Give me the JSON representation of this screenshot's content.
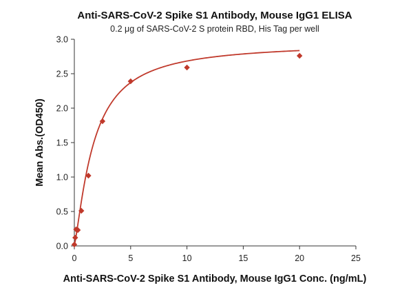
{
  "chart_data": {
    "type": "scatter",
    "title": "Anti-SARS-CoV-2 Spike S1 Antibody, Mouse IgG1 ELISA",
    "subtitle": "0.2 μg of SARS-CoV-2 S protein RBD, His Tag per well",
    "xlabel": "Anti-SARS-CoV-2 Spike S1 Antibody, Mouse IgG1 Conc. (ng/mL)",
    "ylabel": "Mean Abs.(OD450)",
    "xlim": [
      0,
      25
    ],
    "ylim": [
      0,
      3.0
    ],
    "x_ticks": [
      "0",
      "5",
      "10",
      "15",
      "20",
      "25"
    ],
    "y_ticks": [
      "0.0",
      "0.5",
      "1.0",
      "1.5",
      "2.0",
      "2.5",
      "3.0"
    ],
    "grid": false,
    "colors": {
      "series": "#c0392b",
      "axis": "#333333"
    },
    "series": [
      {
        "marker": "diamond",
        "x": [
          0.0,
          0.078,
          0.156,
          0.313,
          0.625,
          1.25,
          2.5,
          5,
          10,
          20
        ],
        "y": [
          0.02,
          0.12,
          0.24,
          0.23,
          0.51,
          1.02,
          1.81,
          2.39,
          2.59,
          2.76
        ]
      }
    ],
    "fit_curve": {
      "model": "4PL",
      "bottom": 0.02,
      "top": 2.95,
      "ec50": 1.7,
      "hill": 1.3
    }
  }
}
